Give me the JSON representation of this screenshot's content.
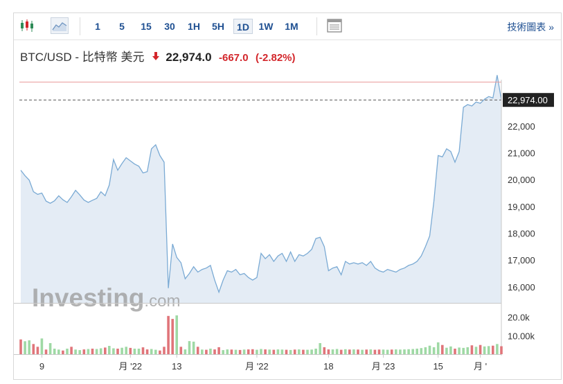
{
  "toolbar": {
    "icons": [
      "candlestick-icon",
      "area-chart-icon",
      "layout-icon"
    ],
    "intervals": [
      "1",
      "5",
      "15",
      "30",
      "1H",
      "5H",
      "1D",
      "1W",
      "1M"
    ],
    "active_interval": "1D",
    "technical_link": "技術圖表 »"
  },
  "header": {
    "pair": "BTC/USD - 比特幣 美元",
    "price": "22,974.0",
    "change": "-667.0",
    "change_pct": "(-2.82%)",
    "direction": "down"
  },
  "watermark": {
    "brand": "Investing",
    "suffix": ".com"
  },
  "colors": {
    "accent": "#1e4f91",
    "down": "#d3262b",
    "up": "#2e8b57",
    "area_fill": "#e4ecf5",
    "line": "#7aaad4",
    "vol_up": "#9fd9a5",
    "vol_down": "#e0757a",
    "prev_close": "#e89a9a"
  },
  "chart_data": {
    "type": "area",
    "ylim": [
      15400,
      23600
    ],
    "y_ticks": [
      "16,000",
      "17,000",
      "18,000",
      "19,000",
      "20,000",
      "21,000",
      "22,000"
    ],
    "y_tick_values": [
      16000,
      17000,
      18000,
      19000,
      20000,
      21000,
      22000
    ],
    "x_labels": [
      "9",
      "月 '22",
      "13",
      "月 '22",
      "18",
      "月 '23",
      "15",
      "月 '"
    ],
    "x_label_index": [
      5,
      26,
      37,
      56,
      73,
      86,
      99,
      109
    ],
    "last_price_label": "22,974.00",
    "last_price": 22974,
    "prev_close": 23641,
    "price": [
      20350,
      20150,
      19980,
      19550,
      19450,
      19500,
      19200,
      19120,
      19210,
      19400,
      19250,
      19150,
      19360,
      19600,
      19430,
      19240,
      19150,
      19230,
      19300,
      19550,
      19400,
      19800,
      20750,
      20350,
      20600,
      20820,
      20700,
      20580,
      20500,
      20250,
      20300,
      21150,
      21300,
      20900,
      20650,
      15950,
      17600,
      17100,
      16900,
      16300,
      16500,
      16750,
      16550,
      16650,
      16700,
      16800,
      16250,
      15800,
      16250,
      16600,
      16550,
      16650,
      16450,
      16500,
      16350,
      16250,
      16350,
      17250,
      17050,
      17200,
      16950,
      17150,
      17250,
      16950,
      17300,
      16950,
      17200,
      17150,
      17250,
      17400,
      17800,
      17850,
      17500,
      16600,
      16700,
      16750,
      16450,
      16950,
      16850,
      16900,
      16850,
      16900,
      16800,
      16950,
      16700,
      16600,
      16550,
      16650,
      16600,
      16550,
      16650,
      16700,
      16800,
      16850,
      16950,
      17150,
      17500,
      17900,
      19200,
      20900,
      20850,
      21150,
      21050,
      20650,
      21050,
      22700,
      22800,
      22750,
      22900,
      22850,
      23000,
      23100,
      23050,
      23900,
      22974
    ],
    "volume_labels": [
      "20.0k",
      "10.00k"
    ],
    "volume_label_values": [
      20000,
      10000
    ],
    "volume": [
      8000,
      7000,
      7500,
      5500,
      4000,
      8500,
      2500,
      6000,
      3000,
      2500,
      2000,
      3000,
      4000,
      2500,
      2200,
      2600,
      2800,
      3000,
      2800,
      3200,
      3600,
      4500,
      3200,
      3000,
      3500,
      4000,
      3400,
      3000,
      3000,
      3700,
      2600,
      2800,
      2400,
      2000,
      4000,
      20700,
      19100,
      21000,
      4000,
      2600,
      7100,
      6800,
      4000,
      2500,
      2400,
      3000,
      2600,
      3800,
      2200,
      2600,
      2500,
      2400,
      2300,
      2500,
      2600,
      2700,
      2400,
      2800,
      2600,
      2500,
      2400,
      2600,
      2500,
      2400,
      2300,
      2500,
      2600,
      2400,
      2400,
      2500,
      3000,
      6000,
      3800,
      2600,
      2600,
      2800,
      2400,
      2700,
      2500,
      2600,
      2500,
      2400,
      2500,
      2600,
      2400,
      2500,
      2500,
      2400,
      2500,
      2600,
      2500,
      2600,
      2700,
      2800,
      3000,
      3300,
      3800,
      4600,
      3800,
      6400,
      5000,
      3500,
      4200,
      3000,
      3600,
      3400,
      3800,
      4800,
      4000,
      5000,
      4200,
      4400,
      4600,
      5500,
      4300
    ],
    "volume_up": [
      0,
      1,
      1,
      0,
      0,
      1,
      0,
      1,
      1,
      1,
      0,
      1,
      0,
      1,
      1,
      0,
      1,
      0,
      1,
      1,
      0,
      1,
      1,
      0,
      1,
      1,
      0,
      1,
      1,
      0,
      0,
      1,
      1,
      0,
      0,
      0,
      0,
      1,
      0,
      1,
      1,
      1,
      0,
      1,
      0,
      1,
      0,
      0,
      1,
      1,
      0,
      1,
      0,
      1,
      0,
      0,
      1,
      1,
      0,
      1,
      0,
      1,
      1,
      0,
      1,
      0,
      1,
      0,
      1,
      1,
      1,
      1,
      0,
      0,
      1,
      1,
      0,
      1,
      0,
      1,
      0,
      1,
      0,
      1,
      0,
      0,
      1,
      1,
      0,
      1,
      1,
      1,
      1,
      1,
      1,
      1,
      1,
      1,
      1,
      1,
      0,
      1,
      1,
      0,
      1,
      1,
      1,
      0,
      1,
      0,
      1,
      1,
      0,
      1,
      0
    ]
  }
}
